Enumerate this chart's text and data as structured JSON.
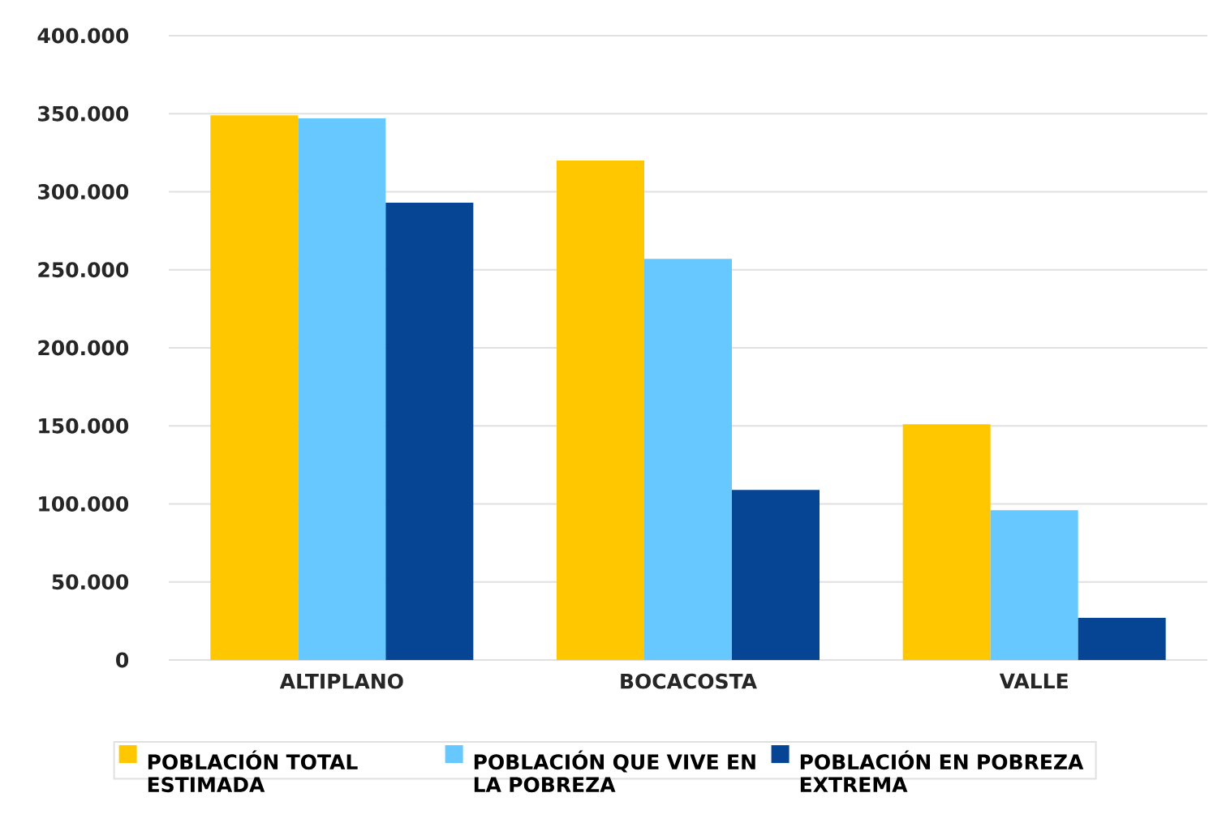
{
  "chart_data": {
    "type": "bar",
    "categories": [
      "ALTIPLANO",
      "BOCACOSTA",
      "VALLE"
    ],
    "series": [
      {
        "name": "POBLACIÓN TOTAL ESTIMADA",
        "color": "#ffc700",
        "values": [
          349000,
          320000,
          151000
        ]
      },
      {
        "name": "POBLACIÓN QUE VIVE EN LA POBREZA",
        "color": "#66c8ff",
        "values": [
          347000,
          257000,
          96000
        ]
      },
      {
        "name": "POBLACIÓN EN POBREZA EXTREMA",
        "color": "#064494",
        "values": [
          293000,
          109000,
          27000
        ]
      }
    ],
    "ylim": [
      0,
      400000
    ],
    "yticks": [
      0,
      {
        "value": 50000,
        "label": "50.000"
      },
      {
        "value": 100000,
        "label": "100.000"
      },
      {
        "value": 150000,
        "label": "150.000"
      },
      {
        "value": 200000,
        "label": "200.000"
      },
      {
        "value": 250000,
        "label": "250.000"
      },
      {
        "value": 300000,
        "label": "300.000"
      },
      {
        "value": 350000,
        "label": "350.000"
      },
      {
        "value": 400000,
        "label": "400.000"
      }
    ],
    "grid": "y",
    "legend": "bottom"
  }
}
